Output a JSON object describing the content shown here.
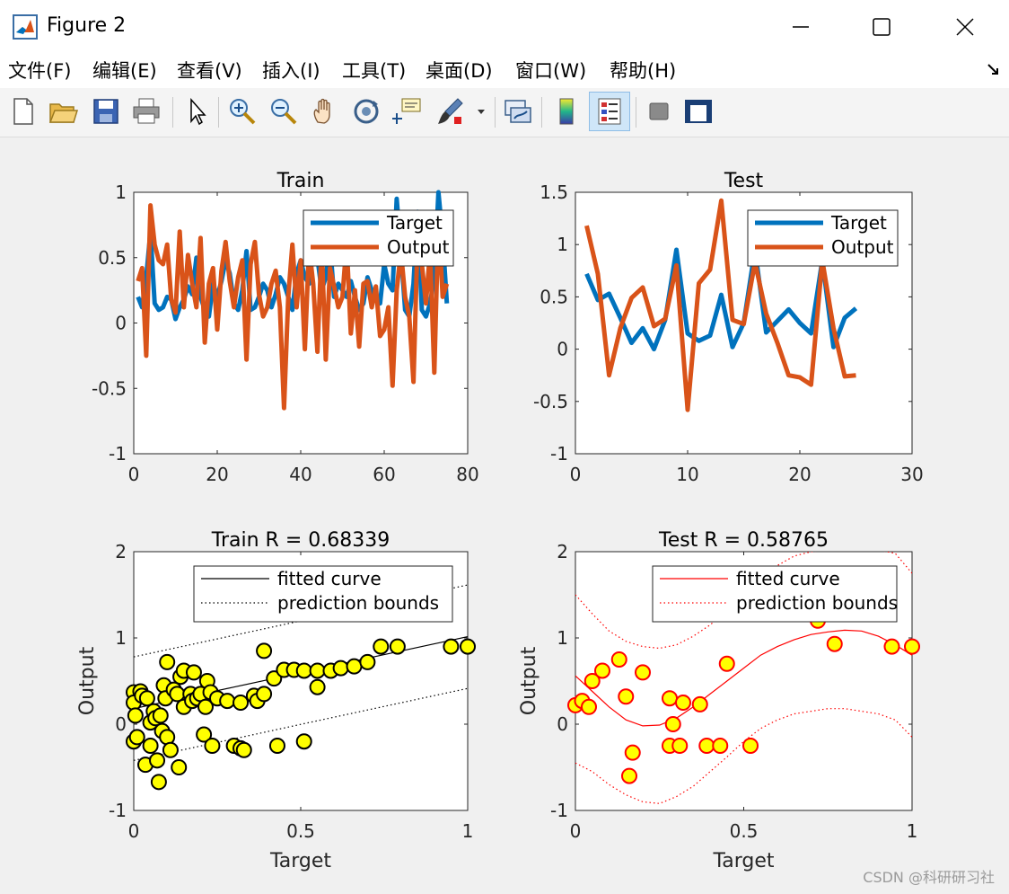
{
  "window": {
    "title": "Figure 2",
    "watermark": "CSDN @科研研习社"
  },
  "menu": [
    {
      "label": "文件(F)"
    },
    {
      "label": "编辑(E)"
    },
    {
      "label": "查看(V)"
    },
    {
      "label": "插入(I)"
    },
    {
      "label": "工具(T)"
    },
    {
      "label": "桌面(D)"
    },
    {
      "label": "窗口(W)"
    },
    {
      "label": "帮助(H)"
    }
  ],
  "toolbar_icons": [
    "new-figure-icon",
    "open-icon",
    "save-icon",
    "print-icon",
    "pointer-icon",
    "zoom-in-icon",
    "zoom-out-icon",
    "pan-icon",
    "rotate-3d-icon",
    "data-cursor-icon",
    "brush-icon",
    "link-plot-icon",
    "colorbar-icon",
    "legend-icon",
    "hide-plot-tools-icon",
    "show-plot-tools-icon"
  ],
  "colors": {
    "target": "#0072BD",
    "output": "#D95319",
    "train_fit": "#000000",
    "test_fit": "#FF0000",
    "marker_fill": "#FFFF00"
  },
  "chart_data": [
    {
      "id": "train-series",
      "type": "line",
      "title": "Train",
      "xlim": [
        0,
        80
      ],
      "ylim": [
        -1,
        1
      ],
      "xticks": [
        0,
        20,
        40,
        60,
        80
      ],
      "yticks": [
        -1,
        -0.5,
        0,
        0.5,
        1
      ],
      "legend": {
        "placement": "top-right",
        "entries": [
          "Target",
          "Output"
        ]
      },
      "series": [
        {
          "name": "Target",
          "x_start": 1,
          "values": [
            0.2,
            0.12,
            0.35,
            0.7,
            0.15,
            0.1,
            0.12,
            0.2,
            0.18,
            0.03,
            0.12,
            0.18,
            0.28,
            0.22,
            0.5,
            0.2,
            0.1,
            0.05,
            0.3,
            0.2,
            0.32,
            0.48,
            0.38,
            0.15,
            0.1,
            0.25,
            0.55,
            0.1,
            0.12,
            0.2,
            0.3,
            0.25,
            0.12,
            0.22,
            0.35,
            0.3,
            0.2,
            0.1,
            0.38,
            0.48,
            0.35,
            0.3,
            0.55,
            0.5,
            0.25,
            0.35,
            0.6,
            0.2,
            0.3,
            0.25,
            0.2,
            0.32,
            0.2,
            0.1,
            0.15,
            0.35,
            0.25,
            0.2,
            0.15,
            0.45,
            0.3,
            0.25,
            0.95,
            0.55,
            0.1,
            0.05,
            0.3,
            0.85,
            0.1,
            0.05,
            0.15,
            0.35,
            1.0,
            0.65,
            0.15
          ]
        },
        {
          "name": "Output",
          "x_start": 1,
          "values": [
            0.32,
            0.42,
            -0.25,
            0.9,
            0.6,
            0.48,
            0.45,
            0.6,
            0.18,
            0.08,
            0.7,
            0.12,
            0.52,
            0.3,
            0.12,
            0.65,
            -0.15,
            0.3,
            0.42,
            -0.05,
            0.4,
            0.62,
            0.32,
            0.12,
            0.35,
            0.48,
            -0.28,
            0.45,
            0.62,
            0.22,
            0.05,
            0.12,
            0.3,
            0.4,
            0.12,
            -0.65,
            0.2,
            0.6,
            0.12,
            0.48,
            -0.2,
            0.58,
            0.3,
            -0.22,
            0.6,
            -0.28,
            0.42,
            0.28,
            0.12,
            0.2,
            0.62,
            -0.08,
            0.25,
            -0.18,
            0.3,
            0.32,
            0.12,
            0.28,
            -0.1,
            -0.05,
            0.12,
            -0.48,
            0.25,
            0.55,
            0.2,
            0.05,
            -0.45,
            0.65,
            0.45,
            0.15,
            0.55,
            -0.38,
            0.8,
            0.2,
            0.3
          ]
        }
      ]
    },
    {
      "id": "test-series",
      "type": "line",
      "title": "Test",
      "xlim": [
        0,
        30
      ],
      "ylim": [
        -1,
        1.5
      ],
      "xticks": [
        0,
        10,
        20,
        30
      ],
      "yticks": [
        -1,
        -0.5,
        0,
        0.5,
        1,
        1.5
      ],
      "legend": {
        "placement": "top-right",
        "entries": [
          "Target",
          "Output"
        ]
      },
      "series": [
        {
          "name": "Target",
          "x_start": 1,
          "values": [
            0.72,
            0.47,
            0.53,
            0.3,
            0.06,
            0.2,
            0.0,
            0.28,
            0.95,
            0.15,
            0.08,
            0.13,
            0.52,
            0.02,
            0.25,
            0.95,
            0.16,
            0.27,
            0.38,
            0.25,
            0.15,
            0.85,
            0.02,
            0.3,
            0.39
          ]
        },
        {
          "name": "Output",
          "x_start": 1,
          "values": [
            1.18,
            0.72,
            -0.25,
            0.2,
            0.49,
            0.59,
            0.22,
            0.29,
            0.8,
            -0.58,
            0.63,
            0.76,
            1.42,
            0.28,
            0.24,
            0.83,
            0.34,
            0.06,
            -0.25,
            -0.27,
            -0.34,
            0.85,
            0.2,
            -0.26,
            -0.25
          ]
        }
      ]
    },
    {
      "id": "train-regression",
      "type": "scatter",
      "title": "Train  R = 0.68339",
      "xlabel": "Target",
      "ylabel": "Output",
      "xlim": [
        0,
        1
      ],
      "ylim": [
        -1,
        2
      ],
      "xticks": [
        0,
        0.5,
        1
      ],
      "yticks": [
        -1,
        0,
        1,
        2
      ],
      "legend": {
        "placement": "top-right",
        "entries": [
          "fitted curve",
          "prediction bounds"
        ]
      },
      "fit": {
        "slope": 0.835,
        "intercept": 0.18
      },
      "bounds_offset": 0.6,
      "points": [
        [
          0.0,
          0.37
        ],
        [
          0.0,
          0.25
        ],
        [
          0.0,
          -0.2
        ],
        [
          0.005,
          0.1
        ],
        [
          0.01,
          -0.15
        ],
        [
          0.02,
          0.38
        ],
        [
          0.025,
          0.33
        ],
        [
          0.035,
          -0.47
        ],
        [
          0.04,
          0.3
        ],
        [
          0.05,
          -0.25
        ],
        [
          0.05,
          0.02
        ],
        [
          0.06,
          0.15
        ],
        [
          0.065,
          0.07
        ],
        [
          0.07,
          -0.42
        ],
        [
          0.075,
          -0.67
        ],
        [
          0.08,
          0.1
        ],
        [
          0.085,
          -0.08
        ],
        [
          0.09,
          0.45
        ],
        [
          0.095,
          0.3
        ],
        [
          0.1,
          -0.15
        ],
        [
          0.1,
          0.72
        ],
        [
          0.11,
          -0.3
        ],
        [
          0.12,
          0.4
        ],
        [
          0.13,
          0.35
        ],
        [
          0.135,
          -0.5
        ],
        [
          0.14,
          0.55
        ],
        [
          0.15,
          0.2
        ],
        [
          0.15,
          0.62
        ],
        [
          0.17,
          0.35
        ],
        [
          0.175,
          0.27
        ],
        [
          0.18,
          0.6
        ],
        [
          0.19,
          0.3
        ],
        [
          0.2,
          0.35
        ],
        [
          0.21,
          -0.12
        ],
        [
          0.215,
          0.2
        ],
        [
          0.22,
          0.5
        ],
        [
          0.23,
          0.37
        ],
        [
          0.235,
          -0.25
        ],
        [
          0.25,
          0.3
        ],
        [
          0.28,
          0.27
        ],
        [
          0.3,
          -0.25
        ],
        [
          0.32,
          0.25
        ],
        [
          0.32,
          -0.28
        ],
        [
          0.33,
          -0.3
        ],
        [
          0.36,
          0.33
        ],
        [
          0.37,
          0.27
        ],
        [
          0.39,
          0.35
        ],
        [
          0.39,
          0.85
        ],
        [
          0.42,
          0.53
        ],
        [
          0.43,
          -0.25
        ],
        [
          0.45,
          0.63
        ],
        [
          0.48,
          0.63
        ],
        [
          0.51,
          0.62
        ],
        [
          0.51,
          -0.2
        ],
        [
          0.55,
          0.62
        ],
        [
          0.55,
          0.43
        ],
        [
          0.59,
          0.62
        ],
        [
          0.62,
          0.65
        ],
        [
          0.66,
          0.67
        ],
        [
          0.7,
          0.72
        ],
        [
          0.74,
          0.9
        ],
        [
          0.79,
          0.9
        ],
        [
          0.95,
          0.9
        ],
        [
          1.0,
          0.9
        ]
      ]
    },
    {
      "id": "test-regression",
      "type": "scatter",
      "title": "Test  R = 0.58765",
      "xlabel": "Target",
      "ylabel": "Output",
      "xlim": [
        0,
        1
      ],
      "ylim": [
        -1,
        2
      ],
      "xticks": [
        0,
        0.5,
        1
      ],
      "yticks": [
        -1,
        0,
        1,
        2
      ],
      "legend": {
        "placement": "top-right",
        "entries": [
          "fitted curve",
          "prediction bounds"
        ]
      },
      "fit_curve": [
        [
          0,
          0.56
        ],
        [
          0.05,
          0.38
        ],
        [
          0.1,
          0.2
        ],
        [
          0.15,
          0.05
        ],
        [
          0.2,
          -0.02
        ],
        [
          0.25,
          -0.01
        ],
        [
          0.3,
          0.07
        ],
        [
          0.35,
          0.2
        ],
        [
          0.4,
          0.35
        ],
        [
          0.45,
          0.5
        ],
        [
          0.5,
          0.65
        ],
        [
          0.55,
          0.8
        ],
        [
          0.6,
          0.9
        ],
        [
          0.65,
          0.98
        ],
        [
          0.7,
          1.04
        ],
        [
          0.75,
          1.07
        ],
        [
          0.8,
          1.09
        ],
        [
          0.85,
          1.08
        ],
        [
          0.9,
          1.02
        ],
        [
          0.95,
          0.92
        ],
        [
          1.0,
          0.8
        ]
      ],
      "upper_bound": [
        [
          0,
          1.5
        ],
        [
          0.05,
          1.28
        ],
        [
          0.1,
          1.08
        ],
        [
          0.15,
          0.96
        ],
        [
          0.2,
          0.9
        ],
        [
          0.25,
          0.88
        ],
        [
          0.3,
          0.92
        ],
        [
          0.35,
          1.02
        ],
        [
          0.4,
          1.15
        ],
        [
          0.45,
          1.32
        ],
        [
          0.5,
          1.5
        ],
        [
          0.55,
          1.68
        ],
        [
          0.6,
          1.84
        ],
        [
          0.65,
          1.95
        ],
        [
          0.7,
          2.0
        ],
        [
          0.75,
          2.02
        ],
        [
          0.8,
          2.02
        ],
        [
          0.85,
          2.02
        ],
        [
          0.9,
          2.02
        ],
        [
          0.95,
          1.98
        ],
        [
          1.0,
          1.75
        ]
      ],
      "lower_bound": [
        [
          0,
          -0.45
        ],
        [
          0.05,
          -0.55
        ],
        [
          0.1,
          -0.7
        ],
        [
          0.15,
          -0.82
        ],
        [
          0.2,
          -0.9
        ],
        [
          0.25,
          -0.92
        ],
        [
          0.3,
          -0.84
        ],
        [
          0.35,
          -0.72
        ],
        [
          0.4,
          -0.55
        ],
        [
          0.45,
          -0.38
        ],
        [
          0.5,
          -0.2
        ],
        [
          0.55,
          -0.05
        ],
        [
          0.6,
          0.05
        ],
        [
          0.65,
          0.12
        ],
        [
          0.7,
          0.15
        ],
        [
          0.75,
          0.18
        ],
        [
          0.8,
          0.18
        ],
        [
          0.85,
          0.15
        ],
        [
          0.9,
          0.12
        ],
        [
          0.95,
          0.05
        ],
        [
          1.0,
          -0.15
        ]
      ],
      "points": [
        [
          0.0,
          0.22
        ],
        [
          0.02,
          0.27
        ],
        [
          0.04,
          0.2
        ],
        [
          0.05,
          0.5
        ],
        [
          0.08,
          0.62
        ],
        [
          0.13,
          0.75
        ],
        [
          0.15,
          0.32
        ],
        [
          0.16,
          -0.6
        ],
        [
          0.17,
          -0.33
        ],
        [
          0.2,
          0.6
        ],
        [
          0.28,
          0.3
        ],
        [
          0.28,
          -0.25
        ],
        [
          0.29,
          0.0
        ],
        [
          0.31,
          -0.25
        ],
        [
          0.32,
          0.25
        ],
        [
          0.37,
          0.23
        ],
        [
          0.39,
          -0.25
        ],
        [
          0.43,
          -0.25
        ],
        [
          0.45,
          0.7
        ],
        [
          0.52,
          -0.25
        ],
        [
          0.72,
          1.2
        ],
        [
          0.77,
          0.93
        ],
        [
          0.94,
          0.9
        ],
        [
          1.0,
          0.9
        ]
      ]
    }
  ]
}
